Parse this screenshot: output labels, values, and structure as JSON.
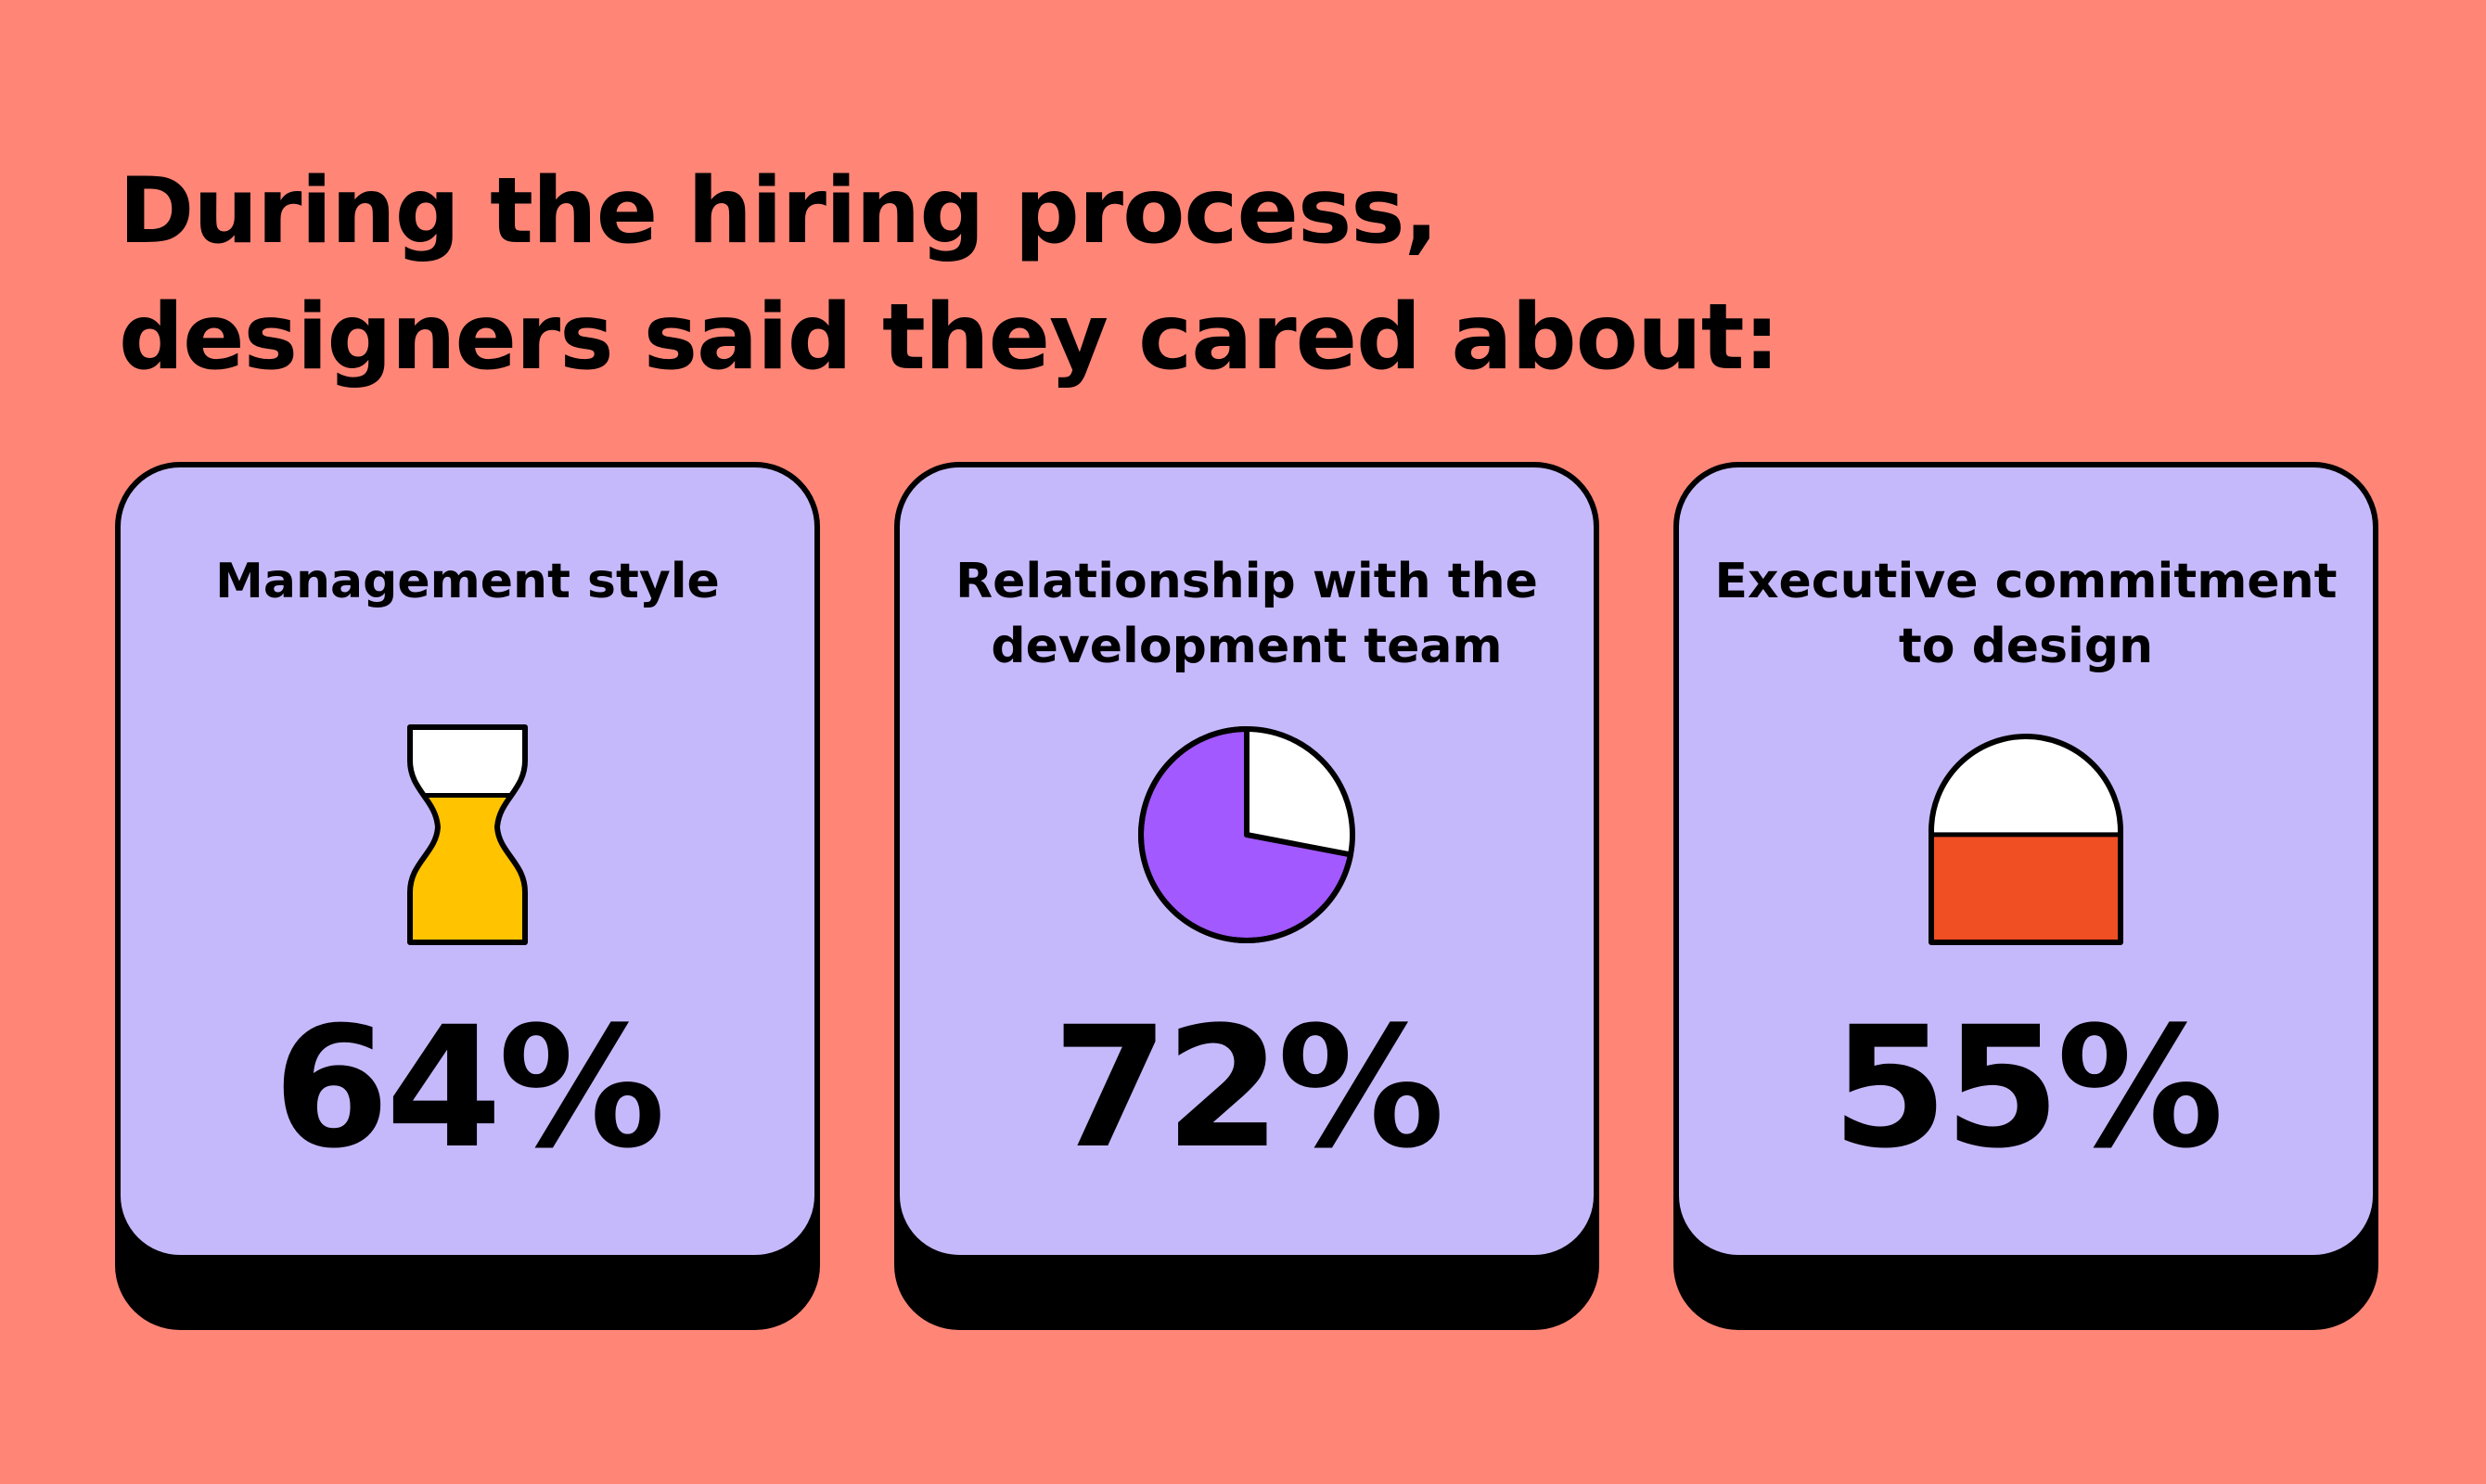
{
  "headline": {
    "line1": "During the hiring process,",
    "line2": "designers said they cared about:"
  },
  "cards": [
    {
      "label_line1": "Management style",
      "label_line2": "",
      "value_text": "64%",
      "icon": "hourglass-icon",
      "fill_color": "#ffc300"
    },
    {
      "label_line1": "Relationship with the",
      "label_line2": "development team",
      "value_text": "72%",
      "icon": "pie-chart-icon",
      "fill_color": "#a259ff"
    },
    {
      "label_line1": "Executive commitment",
      "label_line2": "to design",
      "value_text": "55%",
      "icon": "capsule-icon",
      "fill_color": "#f04e23"
    }
  ],
  "chart_data": {
    "type": "bar",
    "categories": [
      "Management style",
      "Relationship with the development team",
      "Executive commitment to design"
    ],
    "values": [
      64,
      72,
      55
    ],
    "title": "During the hiring process, designers said they cared about:",
    "xlabel": "",
    "ylabel": "",
    "ylim": [
      0,
      100
    ]
  },
  "colors": {
    "background": "#ff8677",
    "card": "#c6b9fb",
    "ink": "#000000",
    "empty": "#ffffff"
  }
}
